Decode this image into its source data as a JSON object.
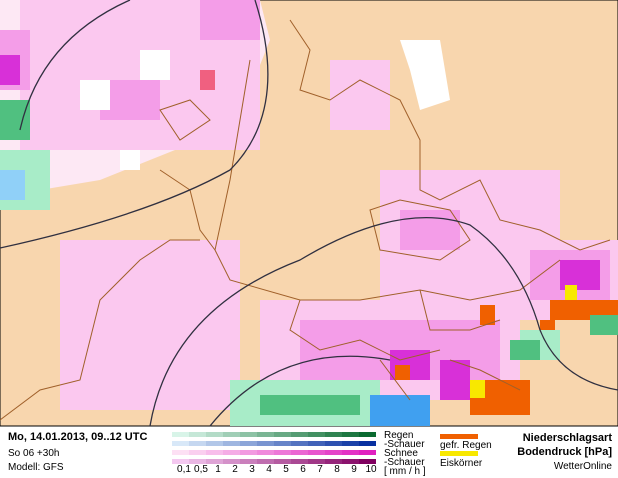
{
  "header": {
    "valid": "Mo, 14.01.2013, 09..12 UTC",
    "run": "So 06 +30h",
    "model": "Modell: GFS"
  },
  "legend": {
    "rain": "Regen",
    "rain_showers": "-Schauer",
    "snow": "Schnee",
    "snow_showers": "-Schauer",
    "unit": "[ mm / h ]",
    "scale": [
      "0,1",
      "0,5",
      "1",
      "2",
      "3",
      "4",
      "5",
      "6",
      "7",
      "8",
      "9",
      "10"
    ],
    "freezing_rain": "gefr. Regen",
    "ice_pellets": "Eiskörner"
  },
  "footer": {
    "title": "Niederschlagsart",
    "subtitle": "Bodendruck [hPa]",
    "brand": "WetterOnline"
  }
}
